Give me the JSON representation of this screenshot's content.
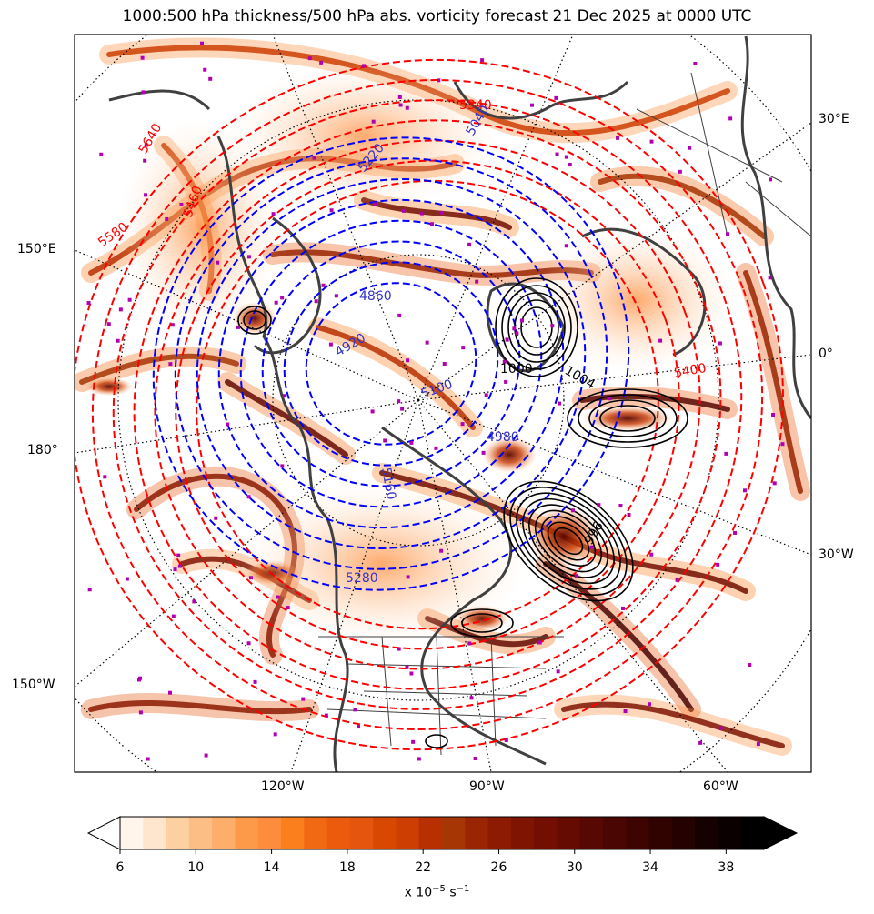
{
  "title": "1000:500 hPa thickness/500 hPa abs. vorticity forecast 21 Dec 2025 at 0000 UTC",
  "map": {
    "lon_labels_bottom": [
      "120°W",
      "90°W",
      "60°W"
    ],
    "lat_labels_left": [
      "150°E",
      "180°",
      "150°W"
    ],
    "lat_labels_right": [
      "30°E",
      "0°",
      "30°W"
    ],
    "contour_labels_thickness_warm": [
      "5640",
      "5580",
      "5460",
      "5400",
      "5340"
    ],
    "contour_labels_thickness_cold": [
      "4860",
      "4920",
      "5100",
      "5160",
      "4980",
      "5040",
      "5220",
      "5280"
    ],
    "contour_labels_pressure": [
      "1000",
      "1004",
      "996"
    ],
    "colors": {
      "warm_thickness": "#ff0000",
      "cold_thickness": "#0000ff",
      "pressure": "#000000",
      "coastline": "#404040",
      "markers": "#b000b0",
      "graticule": "#000000"
    }
  },
  "colorbar": {
    "ticks": [
      "6",
      "10",
      "14",
      "18",
      "22",
      "26",
      "30",
      "34",
      "38"
    ],
    "units_prefix": "x 10",
    "units_exp": "−5",
    "units_suffix": " s",
    "units_exp2": "−1",
    "range": [
      6,
      40
    ],
    "colors": [
      "#fff5eb",
      "#fee6ce",
      "#fdd0a2",
      "#fdbe85",
      "#fdae6b",
      "#fd9a4a",
      "#fd8d3c",
      "#fc7f1e",
      "#f16913",
      "#ec5a0d",
      "#e6550d",
      "#d94801",
      "#cc3e01",
      "#b83001",
      "#a63603",
      "#9a2502",
      "#8c1b02",
      "#7f1402",
      "#720e02",
      "#650b02",
      "#570802",
      "#4a0602",
      "#3d0401",
      "#300301",
      "#230201",
      "#160101",
      "#0a0000",
      "#000000"
    ]
  }
}
